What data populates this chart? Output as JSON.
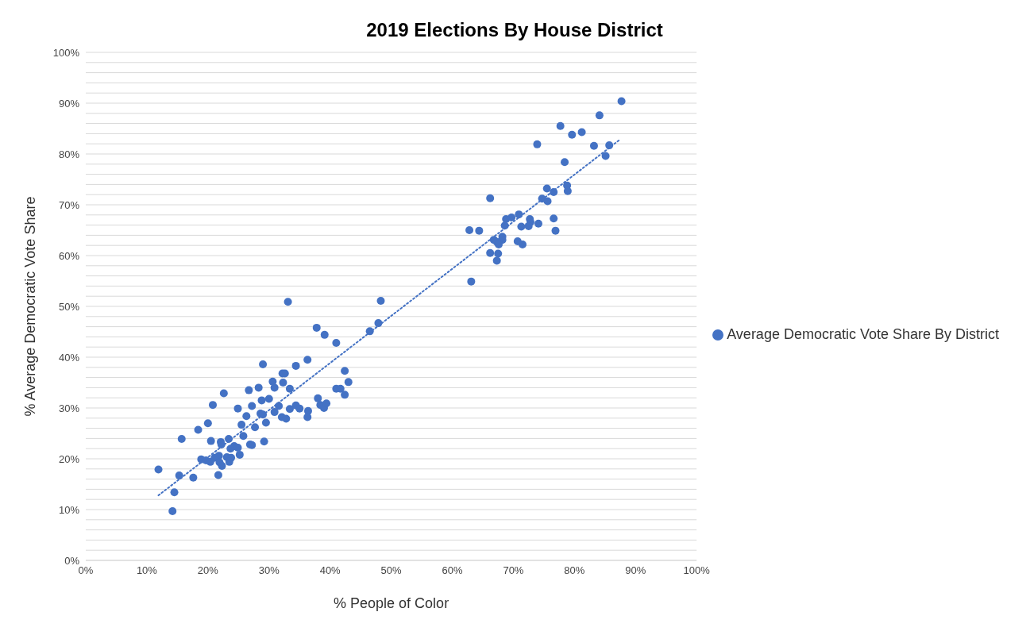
{
  "chart_data": {
    "type": "scatter",
    "title": "2019 Elections By House District",
    "xlabel": "% People of Color",
    "ylabel": "% Average Democratic Vote Share",
    "grid": "y",
    "legend": "right",
    "xlim": [
      0,
      100
    ],
    "xticks": [
      {
        "value": 0,
        "label": "0%"
      },
      {
        "value": 10,
        "label": "10%"
      },
      {
        "value": 20,
        "label": "20%"
      },
      {
        "value": 30,
        "label": "30%"
      },
      {
        "value": 40,
        "label": "40%"
      },
      {
        "value": 50,
        "label": "50%"
      },
      {
        "value": 60,
        "label": "60%"
      },
      {
        "value": 70,
        "label": "70%"
      },
      {
        "value": 80,
        "label": "80%"
      },
      {
        "value": 90,
        "label": "90%"
      },
      {
        "value": 100,
        "label": "100%"
      }
    ],
    "ylim": [
      0,
      100
    ],
    "yticks": [
      {
        "value": 0,
        "label": "0%"
      },
      {
        "value": 2,
        "label": null
      },
      {
        "value": 4,
        "label": null
      },
      {
        "value": 6,
        "label": null
      },
      {
        "value": 8,
        "label": null
      },
      {
        "value": 10,
        "label": "10%"
      },
      {
        "value": 12,
        "label": null
      },
      {
        "value": 14,
        "label": null
      },
      {
        "value": 16,
        "label": null
      },
      {
        "value": 18,
        "label": null
      },
      {
        "value": 20,
        "label": "20%"
      },
      {
        "value": 22,
        "label": null
      },
      {
        "value": 24,
        "label": null
      },
      {
        "value": 26,
        "label": null
      },
      {
        "value": 28,
        "label": null
      },
      {
        "value": 30,
        "label": "30%"
      },
      {
        "value": 32,
        "label": null
      },
      {
        "value": 34,
        "label": null
      },
      {
        "value": 36,
        "label": null
      },
      {
        "value": 38,
        "label": null
      },
      {
        "value": 40,
        "label": "40%"
      },
      {
        "value": 42,
        "label": null
      },
      {
        "value": 44,
        "label": null
      },
      {
        "value": 46,
        "label": null
      },
      {
        "value": 48,
        "label": null
      },
      {
        "value": 50,
        "label": "50%"
      },
      {
        "value": 52,
        "label": null
      },
      {
        "value": 54,
        "label": null
      },
      {
        "value": 56,
        "label": null
      },
      {
        "value": 58,
        "label": null
      },
      {
        "value": 60,
        "label": "60%"
      },
      {
        "value": 62,
        "label": null
      },
      {
        "value": 64,
        "label": null
      },
      {
        "value": 66,
        "label": null
      },
      {
        "value": 68,
        "label": null
      },
      {
        "value": 70,
        "label": "70%"
      },
      {
        "value": 72,
        "label": null
      },
      {
        "value": 74,
        "label": null
      },
      {
        "value": 76,
        "label": null
      },
      {
        "value": 78,
        "label": null
      },
      {
        "value": 80,
        "label": "80%"
      },
      {
        "value": 82,
        "label": null
      },
      {
        "value": 84,
        "label": null
      },
      {
        "value": 86,
        "label": null
      },
      {
        "value": 88,
        "label": null
      },
      {
        "value": 90,
        "label": "90%"
      },
      {
        "value": 92,
        "label": null
      },
      {
        "value": 94,
        "label": null
      },
      {
        "value": 96,
        "label": null
      },
      {
        "value": 98,
        "label": null
      },
      {
        "value": 100,
        "label": "100%"
      }
    ],
    "series": [
      {
        "marker": "circle",
        "name": "Average Democratic Vote Share By District",
        "color": "#4472c4",
        "x": [
          29.0,
          30.6,
          26.7,
          28.3,
          22.6,
          20.8,
          24.9,
          27.2,
          28.8,
          30.0,
          28.6,
          29.0,
          26.3,
          20.0,
          18.4,
          25.5,
          27.7,
          29.5,
          25.8,
          15.7,
          20.5,
          22.1,
          29.2,
          26.9,
          27.2,
          23.4,
          22.2,
          24.3,
          23.7,
          24.9,
          25.2,
          21.8,
          18.9,
          19.7,
          20.4,
          21.1,
          21.9,
          22.3,
          23.1,
          23.8,
          23.5,
          11.9,
          15.3,
          17.6,
          21.7,
          14.5,
          14.2,
          33.1,
          48.3,
          47.9,
          46.5,
          37.8,
          39.1,
          41.0,
          36.3,
          34.4,
          32.2,
          32.6,
          32.3,
          30.9,
          33.4,
          42.4,
          43.0,
          41.0,
          41.7,
          42.4,
          38.0,
          38.4,
          39.0,
          39.4,
          31.6,
          33.4,
          34.4,
          35.0,
          36.4,
          36.3,
          30.9,
          32.1,
          32.8,
          78.8,
          78.9,
          75.5,
          76.6,
          66.2,
          74.7,
          75.6,
          70.9,
          69.7,
          68.8,
          72.7,
          72.8,
          76.6,
          74.1,
          72.5,
          71.3,
          68.6,
          62.8,
          64.4,
          76.9,
          68.2,
          68.2,
          66.8,
          67.3,
          67.6,
          70.7,
          71.5,
          66.2,
          67.5,
          67.3,
          63.1,
          87.7,
          84.1,
          77.7,
          81.2,
          79.6,
          83.2,
          85.7,
          85.1,
          73.9,
          78.4
        ],
        "values": [
          38.6,
          35.2,
          33.5,
          34.0,
          32.9,
          30.6,
          29.9,
          30.4,
          31.5,
          31.8,
          28.9,
          28.7,
          28.4,
          27.0,
          25.7,
          26.7,
          26.2,
          27.1,
          24.5,
          23.9,
          23.5,
          23.3,
          23.4,
          22.8,
          22.7,
          23.9,
          22.8,
          22.5,
          22.0,
          22.2,
          20.8,
          20.6,
          19.9,
          19.7,
          19.4,
          20.2,
          19.3,
          18.6,
          20.3,
          20.2,
          19.4,
          17.9,
          16.7,
          16.3,
          16.8,
          13.4,
          9.7,
          50.9,
          51.1,
          46.7,
          45.1,
          45.8,
          44.4,
          42.8,
          39.5,
          38.3,
          36.8,
          36.8,
          35.0,
          34.0,
          33.8,
          37.3,
          35.1,
          33.8,
          33.8,
          32.6,
          31.9,
          30.6,
          30.0,
          30.9,
          30.4,
          29.8,
          30.5,
          29.9,
          29.4,
          28.2,
          29.2,
          28.2,
          27.9,
          73.8,
          72.7,
          73.2,
          72.5,
          71.3,
          71.2,
          70.7,
          68.1,
          67.5,
          67.2,
          67.2,
          66.6,
          67.3,
          66.3,
          65.8,
          65.7,
          65.9,
          65.0,
          64.9,
          64.9,
          63.7,
          63.1,
          63.1,
          62.7,
          62.2,
          62.8,
          62.2,
          60.5,
          60.4,
          59.0,
          54.9,
          90.4,
          87.6,
          85.5,
          84.3,
          83.8,
          81.6,
          81.7,
          79.6,
          81.9,
          78.4
        ]
      },
      {
        "type": "line",
        "color": "#4472c4",
        "line_style": "dotted",
        "x": [
          11.9,
          87.4
        ],
        "values": [
          12.8,
          82.8
        ]
      }
    ]
  }
}
